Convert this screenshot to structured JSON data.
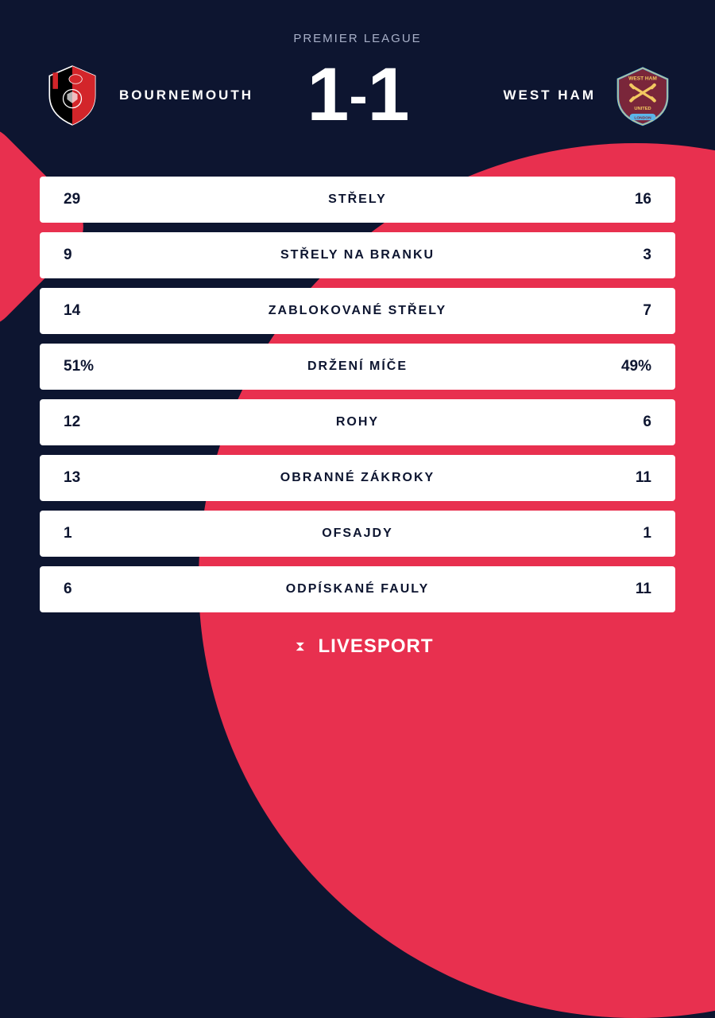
{
  "league": "PREMIER LEAGUE",
  "home": {
    "name": "BOURNEMOUTH",
    "score": "1",
    "badge_colors": {
      "primary": "#000000",
      "accent": "#d3252a",
      "outline": "#ffffff"
    }
  },
  "away": {
    "name": "WEST HAM",
    "score": "1",
    "badge_colors": {
      "primary": "#7a263a",
      "accent": "#5bb5e8",
      "cross": "#f2c860"
    }
  },
  "stats": [
    {
      "label": "STŘELY",
      "home": "29",
      "away": "16"
    },
    {
      "label": "STŘELY NA BRANKU",
      "home": "9",
      "away": "3"
    },
    {
      "label": "ZABLOKOVANÉ STŘELY",
      "home": "14",
      "away": "7"
    },
    {
      "label": "DRŽENÍ MÍČE",
      "home": "51%",
      "away": "49%"
    },
    {
      "label": "ROHY",
      "home": "12",
      "away": "6"
    },
    {
      "label": "OBRANNÉ ZÁKROKY",
      "home": "13",
      "away": "11"
    },
    {
      "label": "OFSAJDY",
      "home": "1",
      "away": "1"
    },
    {
      "label": "ODPÍSKANÉ FAULY",
      "home": "6",
      "away": "11"
    }
  ],
  "brand": {
    "name": "LIVESPORT",
    "icon_color": "#e8304f",
    "icon_accent": "#ffffff"
  },
  "theme": {
    "background": "#0d1530",
    "accent": "#e8304f",
    "card_bg": "#ffffff",
    "text_light": "#ffffff",
    "text_dark": "#0d1530",
    "league_text": "#a8b0c8",
    "stat_label_fontsize": 16,
    "stat_value_fontsize": 19,
    "score_fontsize": 95,
    "team_name_fontsize": 17
  }
}
